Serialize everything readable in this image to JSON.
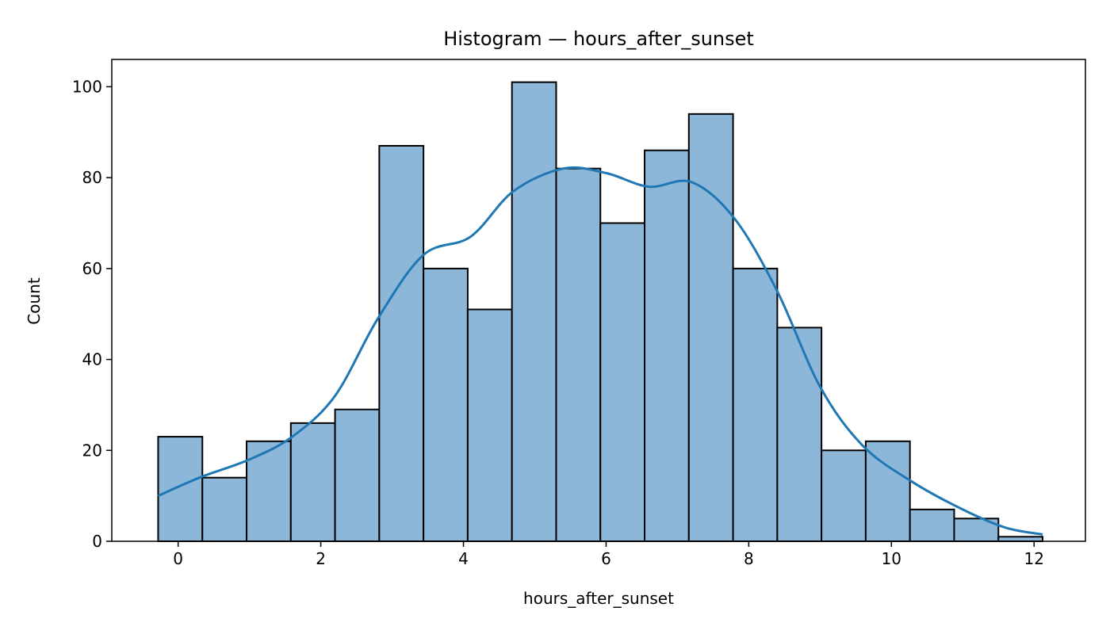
{
  "chart_data": {
    "type": "bar",
    "subtype": "histogram",
    "title": "Histogram — hours_after_sunset",
    "xlabel": "hours_after_sunset",
    "ylabel": "Count",
    "xlim": [
      -0.93,
      12.72
    ],
    "ylim": [
      0,
      106
    ],
    "xticks": [
      0,
      2,
      4,
      6,
      8,
      10,
      12
    ],
    "yticks": [
      0,
      20,
      40,
      60,
      80,
      100
    ],
    "bins": {
      "edges": [
        -0.28,
        0.34,
        0.96,
        1.58,
        2.2,
        2.82,
        3.44,
        4.06,
        4.68,
        5.3,
        5.92,
        6.54,
        7.16,
        7.78,
        8.4,
        9.02,
        9.64,
        10.26,
        10.88,
        11.5,
        12.12
      ],
      "counts": [
        23,
        14,
        22,
        26,
        29,
        87,
        60,
        51,
        101,
        82,
        70,
        86,
        94,
        60,
        47,
        20,
        22,
        7,
        5,
        1
      ]
    },
    "kde": {
      "x": [
        -0.28,
        0.3,
        1.0,
        1.6,
        2.2,
        2.8,
        3.44,
        4.1,
        4.7,
        5.4,
        6.0,
        6.6,
        7.2,
        7.8,
        8.4,
        9.0,
        9.6,
        10.3,
        11.0,
        11.6,
        12.12
      ],
      "y": [
        10,
        14,
        18,
        23,
        32,
        49,
        63,
        67,
        77,
        82,
        81,
        78,
        79,
        71,
        55,
        34,
        21,
        13,
        7,
        3,
        1.5
      ]
    },
    "colors": {
      "bar_fill": "#8db7d9",
      "bar_edge": "#000000",
      "kde_line": "#1f77b4",
      "background": "#ffffff"
    },
    "grid": false,
    "legend": false
  }
}
